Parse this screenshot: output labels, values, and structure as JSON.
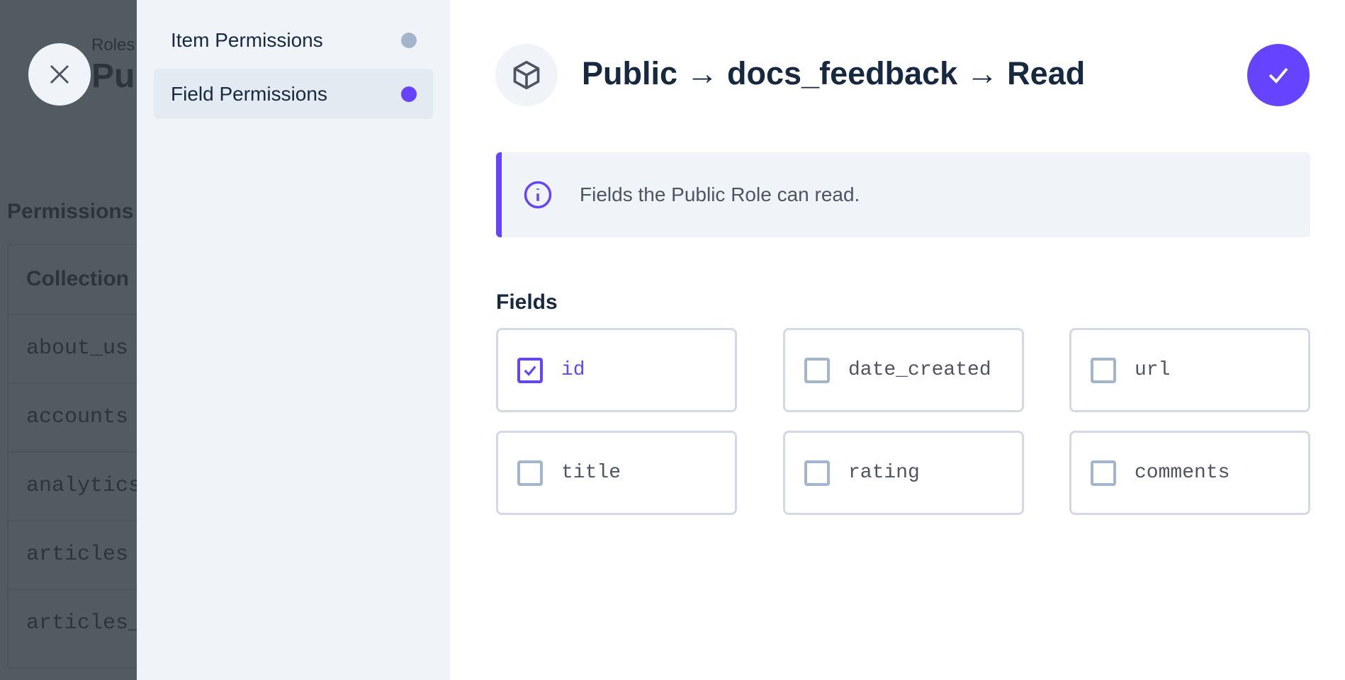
{
  "background_page": {
    "breadcrumb": "Roles",
    "title_partial": "Pu",
    "section_title": "Permissions",
    "table_header": "Collection",
    "rows": [
      "about_us",
      "accounts",
      "analytics",
      "articles",
      "articles_"
    ]
  },
  "sidebar": {
    "items": [
      {
        "label": "Item Permissions",
        "dot_color": "#a2b5cd",
        "active": false
      },
      {
        "label": "Field Permissions",
        "dot_color": "#6644ff",
        "active": true
      }
    ]
  },
  "header": {
    "icon": "box-icon",
    "title": "Public → docs_feedback → Read",
    "save_icon": "check-icon"
  },
  "notice": {
    "icon": "info-icon",
    "text": "Fields the Public Role can read."
  },
  "fields": {
    "label": "Fields",
    "items": [
      {
        "name": "id",
        "checked": true
      },
      {
        "name": "date_created",
        "checked": false
      },
      {
        "name": "url",
        "checked": false
      },
      {
        "name": "title",
        "checked": false
      },
      {
        "name": "rating",
        "checked": false
      },
      {
        "name": "comments",
        "checked": false
      }
    ]
  },
  "colors": {
    "accent": "#6644ff",
    "overlay": "#525b62",
    "sidebar_bg": "#f0f4f9"
  }
}
